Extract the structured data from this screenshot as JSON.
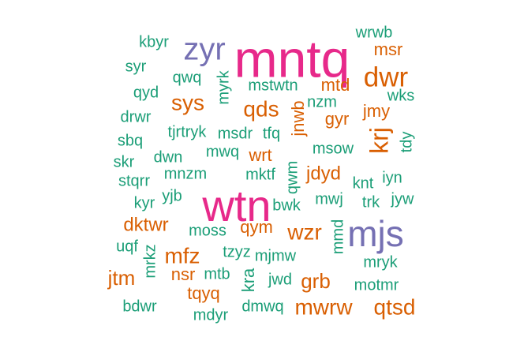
{
  "colors": {
    "green": "#1b9e77",
    "orange": "#d95f02",
    "purple": "#7570b3",
    "pink": "#e7298a"
  },
  "words": [
    {
      "text": "mntq",
      "color": "pink",
      "rank": 1
    },
    {
      "text": "wtn",
      "color": "pink",
      "rank": 1
    },
    {
      "text": "mjs",
      "color": "purple",
      "rank": 2
    },
    {
      "text": "zyr",
      "color": "purple",
      "rank": 2
    },
    {
      "text": "dwr",
      "color": "orange",
      "rank": 3
    },
    {
      "text": "krj",
      "color": "orange",
      "rank": 3
    },
    {
      "text": "mwrw",
      "color": "orange",
      "rank": 3
    },
    {
      "text": "qtsd",
      "color": "orange",
      "rank": 3
    },
    {
      "text": "wzr",
      "color": "orange",
      "rank": 3
    },
    {
      "text": "sys",
      "color": "orange",
      "rank": 3
    },
    {
      "text": "qds",
      "color": "orange",
      "rank": 3
    },
    {
      "text": "mfz",
      "color": "orange",
      "rank": 3
    },
    {
      "text": "grb",
      "color": "orange",
      "rank": 3
    },
    {
      "text": "jtm",
      "color": "orange",
      "rank": 3
    },
    {
      "text": "dktwr",
      "color": "orange",
      "rank": 4
    },
    {
      "text": "jdyd",
      "color": "orange",
      "rank": 4
    },
    {
      "text": "qym",
      "color": "orange",
      "rank": 4
    },
    {
      "text": "nsr",
      "color": "orange",
      "rank": 4
    },
    {
      "text": "tqyq",
      "color": "orange",
      "rank": 4
    },
    {
      "text": "msr",
      "color": "orange",
      "rank": 4
    },
    {
      "text": "mtd",
      "color": "orange",
      "rank": 4
    },
    {
      "text": "jmy",
      "color": "orange",
      "rank": 4
    },
    {
      "text": "gyr",
      "color": "orange",
      "rank": 4
    },
    {
      "text": "wrt",
      "color": "orange",
      "rank": 4
    },
    {
      "text": "jnwb",
      "color": "orange",
      "rank": 4
    },
    {
      "text": "kbyr",
      "color": "green",
      "rank": 5
    },
    {
      "text": "wrwb",
      "color": "green",
      "rank": 5
    },
    {
      "text": "syr",
      "color": "green",
      "rank": 5
    },
    {
      "text": "qyd",
      "color": "green",
      "rank": 5
    },
    {
      "text": "qwq",
      "color": "green",
      "rank": 5
    },
    {
      "text": "myrk",
      "color": "green",
      "rank": 5
    },
    {
      "text": "mstwtn",
      "color": "green",
      "rank": 5
    },
    {
      "text": "wks",
      "color": "green",
      "rank": 5
    },
    {
      "text": "nzm",
      "color": "green",
      "rank": 5
    },
    {
      "text": "drwr",
      "color": "green",
      "rank": 5
    },
    {
      "text": "sbq",
      "color": "green",
      "rank": 5
    },
    {
      "text": "tjrtryk",
      "color": "green",
      "rank": 5
    },
    {
      "text": "msdr",
      "color": "green",
      "rank": 5
    },
    {
      "text": "tfq",
      "color": "green",
      "rank": 5
    },
    {
      "text": "msow",
      "color": "green",
      "rank": 5
    },
    {
      "text": "tdy",
      "color": "green",
      "rank": 5
    },
    {
      "text": "skr",
      "color": "green",
      "rank": 5
    },
    {
      "text": "dwn",
      "color": "green",
      "rank": 5
    },
    {
      "text": "mwq",
      "color": "green",
      "rank": 5
    },
    {
      "text": "stqrr",
      "color": "green",
      "rank": 5
    },
    {
      "text": "mnzm",
      "color": "green",
      "rank": 5
    },
    {
      "text": "mktf",
      "color": "green",
      "rank": 5
    },
    {
      "text": "qwm",
      "color": "green",
      "rank": 5
    },
    {
      "text": "knt",
      "color": "green",
      "rank": 5
    },
    {
      "text": "iyn",
      "color": "green",
      "rank": 5
    },
    {
      "text": "kyr",
      "color": "green",
      "rank": 5
    },
    {
      "text": "yjb",
      "color": "green",
      "rank": 5
    },
    {
      "text": "bwk",
      "color": "green",
      "rank": 5
    },
    {
      "text": "mwj",
      "color": "green",
      "rank": 5
    },
    {
      "text": "trk",
      "color": "green",
      "rank": 5
    },
    {
      "text": "jyw",
      "color": "green",
      "rank": 5
    },
    {
      "text": "moss",
      "color": "green",
      "rank": 5
    },
    {
      "text": "mmd",
      "color": "green",
      "rank": 5
    },
    {
      "text": "uqf",
      "color": "green",
      "rank": 5
    },
    {
      "text": "mrkz",
      "color": "green",
      "rank": 5
    },
    {
      "text": "tzyz",
      "color": "green",
      "rank": 5
    },
    {
      "text": "mjmw",
      "color": "green",
      "rank": 5
    },
    {
      "text": "mryk",
      "color": "green",
      "rank": 5
    },
    {
      "text": "mtb",
      "color": "green",
      "rank": 5
    },
    {
      "text": "kra",
      "color": "green",
      "rank": 5
    },
    {
      "text": "jwd",
      "color": "green",
      "rank": 5
    },
    {
      "text": "motmr",
      "color": "green",
      "rank": 5
    },
    {
      "text": "bdwr",
      "color": "green",
      "rank": 5
    },
    {
      "text": "mdyr",
      "color": "green",
      "rank": 5
    },
    {
      "text": "dmwq",
      "color": "green",
      "rank": 5
    }
  ]
}
